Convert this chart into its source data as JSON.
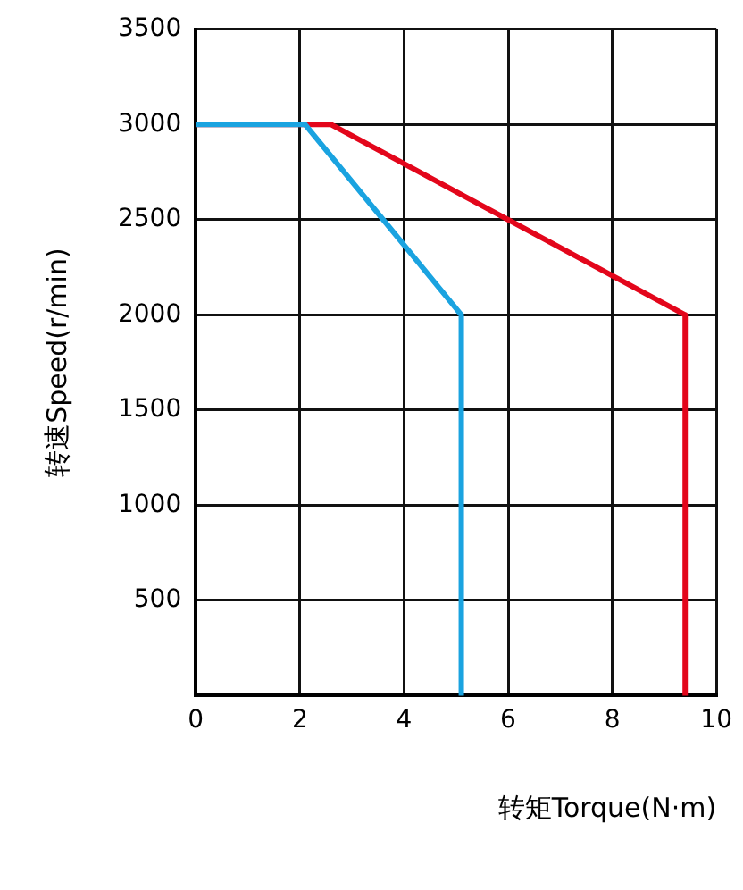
{
  "chart_data": {
    "type": "line",
    "xlabel": "转矩Torque(N·m)",
    "ylabel": "转速Speed(r/min)",
    "series": [
      {
        "color": "#1aa3e0",
        "x": [
          0,
          2.1,
          5.1,
          5.1
        ],
        "values": [
          3000,
          3000,
          2000,
          0
        ]
      },
      {
        "color": "#e3061b",
        "x": [
          0,
          2.6,
          9.4,
          9.4
        ],
        "values": [
          3000,
          3000,
          2000,
          0
        ]
      }
    ],
    "xlim": [
      0,
      10
    ],
    "xticks": [
      0,
      2,
      4,
      6,
      8,
      10
    ],
    "ylim": [
      0,
      3500
    ],
    "yticks": [
      {
        "value": 0,
        "label": null
      },
      500,
      1000,
      1500,
      2000,
      2500,
      3000,
      3500
    ],
    "grid": true,
    "legend": false,
    "marker": "none",
    "line_style": "solid"
  }
}
